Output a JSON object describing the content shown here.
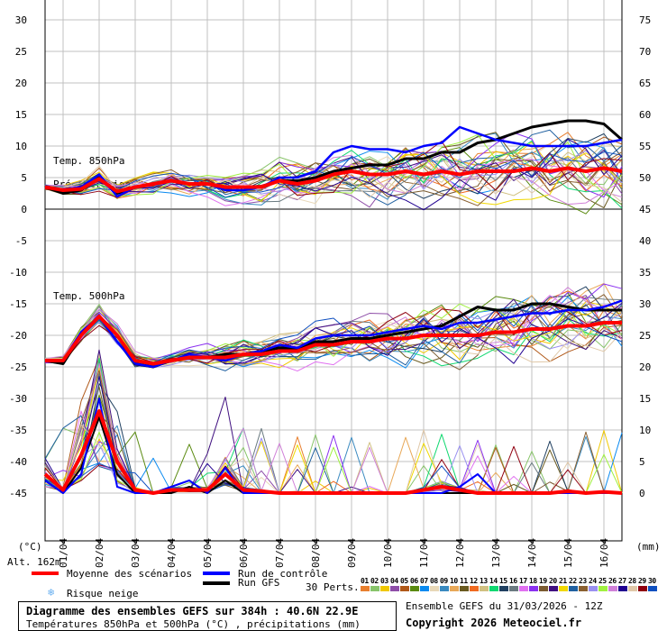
{
  "chart_data": {
    "type": "line",
    "title": "Diagramme des ensembles GEFS sur 384h : 40.6N 22.9E",
    "subtitle": "Températures 850hPa et 500hPa (°C) , précipitations (mm)",
    "left_axis": {
      "label": "(°C)",
      "range": [
        -45,
        30
      ],
      "ticks": [
        30,
        25,
        20,
        15,
        10,
        5,
        0,
        -5,
        -10,
        -15,
        -20,
        -25,
        -30,
        -35,
        -40,
        -45
      ]
    },
    "right_axis": {
      "label": "(mm)",
      "range": [
        0,
        75
      ],
      "ticks": [
        75,
        70,
        65,
        60,
        55,
        50,
        45,
        40,
        35,
        30,
        25,
        20,
        15,
        10,
        5,
        0
      ]
    },
    "x_tick_labels": [
      "01/04",
      "02/04",
      "03/04",
      "04/04",
      "05/04",
      "06/04",
      "07/04",
      "08/04",
      "09/04",
      "10/04",
      "11/04",
      "12/04",
      "13/04",
      "14/04",
      "15/04",
      "16/04"
    ],
    "x_step_hours": 12,
    "panel_labels": {
      "t850": "Temp. 850hPa",
      "precip": "Précipitations",
      "t500": "Temp. 500hPa"
    },
    "altitude": "Alt. 162m",
    "series": {
      "t850_mean": [
        3.5,
        3,
        3.2,
        4.8,
        2.8,
        3.5,
        4,
        4.5,
        4,
        4,
        3.5,
        3.5,
        3.5,
        4.5,
        4,
        4.5,
        5.5,
        6,
        5.5,
        5.5,
        6,
        5.5,
        6,
        5.5,
        6,
        6,
        6,
        6.5,
        6,
        6.5,
        6,
        6.5,
        6
      ],
      "t850_control": [
        3.5,
        3,
        3.5,
        5.5,
        2,
        3.5,
        4,
        4.5,
        4,
        4,
        3,
        3,
        3.5,
        5,
        5,
        6,
        9,
        10,
        9.5,
        9.5,
        9,
        10,
        10.5,
        13,
        12,
        11,
        10.5,
        10,
        10,
        10,
        10,
        10.5,
        11
      ],
      "t850_gfs": [
        3.5,
        2.5,
        3,
        5,
        2.5,
        3.5,
        4,
        4.5,
        4,
        4,
        3.5,
        3.5,
        3.5,
        4.5,
        4.5,
        5,
        6,
        6.5,
        7,
        7,
        8,
        8,
        9,
        9,
        10.5,
        11,
        12,
        13,
        13.5,
        14,
        14,
        13.5,
        11
      ],
      "t500_mean": [
        -24,
        -24,
        -20,
        -17,
        -20,
        -24,
        -24.5,
        -24,
        -23.5,
        -23.5,
        -23.5,
        -23,
        -23,
        -22.5,
        -22.5,
        -21.5,
        -21.5,
        -21,
        -21,
        -20.5,
        -20.5,
        -20,
        -20,
        -20,
        -20,
        -19.5,
        -19.5,
        -19,
        -19,
        -18.5,
        -18.5,
        -18,
        -18
      ],
      "t500_control": [
        -24,
        -24,
        -19.5,
        -17,
        -21,
        -24.5,
        -25,
        -24,
        -23,
        -23.5,
        -24,
        -23,
        -22.5,
        -21.5,
        -22,
        -20.5,
        -20,
        -20,
        -20,
        -19.5,
        -19,
        -18.5,
        -19,
        -18,
        -18,
        -17.5,
        -17,
        -16.5,
        -16.5,
        -16,
        -16,
        -15.5,
        -14.5
      ],
      "t500_gfs": [
        -24,
        -24.5,
        -20,
        -17,
        -20,
        -24.5,
        -25,
        -24,
        -23.5,
        -23.5,
        -23,
        -23,
        -22.5,
        -22,
        -22,
        -21,
        -21,
        -20.5,
        -20.5,
        -20,
        -19.5,
        -19,
        -18.5,
        -17,
        -15.5,
        -16,
        -16,
        -15,
        -15,
        -15.5,
        -16,
        -16,
        -16
      ],
      "precip_mean": [
        3,
        0.5,
        6,
        13,
        5,
        0.5,
        0,
        0.5,
        0.5,
        0.5,
        3,
        0.5,
        0.3,
        0,
        0,
        0,
        0,
        0,
        0,
        0,
        0,
        0.5,
        1,
        0.5,
        0,
        0,
        0,
        0,
        0,
        0.3,
        0,
        0.2,
        0
      ],
      "precip_control": [
        2,
        0,
        3,
        15,
        1,
        0,
        0,
        1,
        2,
        0,
        4,
        0,
        0,
        0,
        0,
        0,
        0,
        0,
        0,
        0,
        0,
        0,
        0,
        1,
        3,
        0,
        0,
        0,
        0,
        0,
        0,
        0,
        0
      ],
      "precip_gfs": [
        2,
        0,
        4,
        12,
        3,
        0,
        0,
        0,
        1,
        0,
        2,
        0,
        0,
        0,
        0,
        0,
        0,
        0,
        0,
        0,
        0,
        0,
        0,
        0,
        0,
        0,
        0,
        0,
        0,
        0,
        0,
        0,
        0
      ]
    },
    "ensemble_spread_850": [
      0.5,
      0.8,
      1,
      1.5,
      1.2,
      1.2,
      1.3,
      1.5,
      1.5,
      1.8,
      2,
      2,
      2.2,
      2.5,
      2.5,
      2.8,
      3,
      3.2,
      3.4,
      3.6,
      3.8,
      4,
      4,
      4.2,
      4.2,
      4.4,
      4.4,
      4.5,
      4.5,
      4.6,
      4.6,
      4.7,
      4.7
    ],
    "ensemble_spread_500": [
      0.5,
      0.6,
      1,
      1.5,
      1.5,
      1,
      1,
      1,
      1.2,
      1.5,
      1.8,
      2,
      2,
      2.2,
      2.4,
      2.6,
      2.8,
      3,
      3.2,
      3.4,
      3.6,
      3.8,
      4,
      4.2,
      4.4,
      4.6,
      4.8,
      5,
      5,
      5,
      5,
      5,
      5
    ]
  },
  "legend": {
    "mean": {
      "label": "Moyenne des scénarios",
      "color": "#ff0000"
    },
    "control": {
      "label": "Run de contrôle",
      "color": "#0000ff"
    },
    "gfs": {
      "label": "Run GFS",
      "color": "#000000"
    },
    "perts_label": "30 Perts.",
    "snow": "Risque neige",
    "perts": [
      {
        "n": "01",
        "c": "#e87f2e"
      },
      {
        "n": "02",
        "c": "#88c46a"
      },
      {
        "n": "03",
        "c": "#f0c800"
      },
      {
        "n": "04",
        "c": "#8e4ea8"
      },
      {
        "n": "05",
        "c": "#b05818"
      },
      {
        "n": "06",
        "c": "#5a8a10"
      },
      {
        "n": "07",
        "c": "#0a8af0"
      },
      {
        "n": "08",
        "c": "#e8d8b8"
      },
      {
        "n": "09",
        "c": "#3a8ac0"
      },
      {
        "n": "10",
        "c": "#e8a858"
      },
      {
        "n": "11",
        "c": "#6a5a20"
      },
      {
        "n": "12",
        "c": "#f06a20"
      },
      {
        "n": "13",
        "c": "#d0c080"
      },
      {
        "n": "14",
        "c": "#10d870"
      },
      {
        "n": "15",
        "c": "#204060"
      },
      {
        "n": "16",
        "c": "#6a7a80"
      },
      {
        "n": "17",
        "c": "#e070f0"
      },
      {
        "n": "18",
        "c": "#8a30f0"
      },
      {
        "n": "19",
        "c": "#7a5a30"
      },
      {
        "n": "20",
        "c": "#401080"
      },
      {
        "n": "21",
        "c": "#f0d800"
      },
      {
        "n": "22",
        "c": "#2060a0"
      },
      {
        "n": "23",
        "c": "#8a6030"
      },
      {
        "n": "24",
        "c": "#9a90f0"
      },
      {
        "n": "25",
        "c": "#a0f040"
      },
      {
        "n": "26",
        "c": "#d080d8"
      },
      {
        "n": "27",
        "c": "#200090"
      },
      {
        "n": "28",
        "c": "#e0c8a8"
      },
      {
        "n": "29",
        "c": "#900010"
      },
      {
        "n": "30",
        "c": "#1050c0"
      }
    ]
  },
  "footer": {
    "title": "Diagramme des ensembles GEFS sur 384h : 40.6N 22.9E",
    "subtitle": "Températures 850hPa et 500hPa (°C) , précipitations (mm)",
    "run": "Ensemble GEFS du 31/03/2026 - 12Z",
    "copyright": "Copyright 2026 Meteociel.fr"
  }
}
